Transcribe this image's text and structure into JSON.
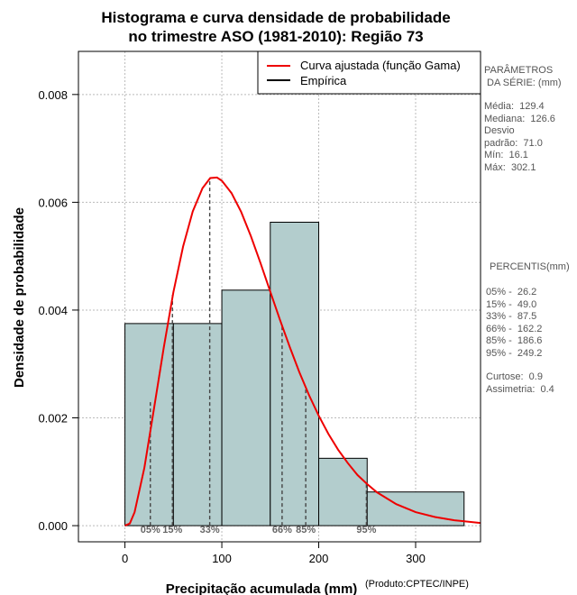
{
  "chart_data": {
    "type": "histogram",
    "title": [
      "Histograma e curva densidade de probabilidade",
      "no trimestre ASO (1981-2010): Região 73"
    ],
    "xlabel": "Precipitação acumulada (mm)",
    "ylabel": "Densidade de probabilidade",
    "credit": "(Produto:CPTEC/INPE)",
    "xlim": [
      -48,
      367
    ],
    "ylim": [
      -0.0003,
      0.0088
    ],
    "xticks": [
      0,
      100,
      200,
      300
    ],
    "xtick_labels": [
      "0",
      "100",
      "200",
      "300"
    ],
    "yticks": [
      0.0,
      0.002,
      0.004,
      0.006,
      0.008
    ],
    "ytick_labels": [
      "0.000",
      "0.002",
      "0.004",
      "0.006",
      "0.008"
    ],
    "grid": true,
    "bins": [
      {
        "x0": 0,
        "x1": 50,
        "density": 0.00375
      },
      {
        "x0": 50,
        "x1": 100,
        "density": 0.00375
      },
      {
        "x0": 100,
        "x1": 150,
        "density": 0.00437
      },
      {
        "x0": 150,
        "x1": 200,
        "density": 0.00563
      },
      {
        "x0": 200,
        "x1": 250,
        "density": 0.00125
      },
      {
        "x0": 250,
        "x1": 350,
        "density": 0.000625
      }
    ],
    "curve": {
      "name": "Curva ajustada (função Gama)",
      "color": "#ee0000",
      "distribution": "gamma",
      "shape": 3.3,
      "scale": 38.7,
      "points": [
        [
          0,
          0
        ],
        [
          5,
          4e-05
        ],
        [
          10,
          0.00025
        ],
        [
          20,
          0.00107
        ],
        [
          30,
          0.00217
        ],
        [
          40,
          0.0033
        ],
        [
          50,
          0.00433
        ],
        [
          60,
          0.00518
        ],
        [
          70,
          0.00583
        ],
        [
          80,
          0.00626
        ],
        [
          88,
          0.00645
        ],
        [
          95,
          0.00646
        ],
        [
          100,
          0.0064
        ],
        [
          110,
          0.00617
        ],
        [
          120,
          0.00582
        ],
        [
          130,
          0.00537
        ],
        [
          140,
          0.00487
        ],
        [
          150,
          0.00434
        ],
        [
          160,
          0.00382
        ],
        [
          170,
          0.00332
        ],
        [
          180,
          0.00285
        ],
        [
          190,
          0.00242
        ],
        [
          200,
          0.00204
        ],
        [
          210,
          0.0017
        ],
        [
          220,
          0.00141
        ],
        [
          230,
          0.00116
        ],
        [
          240,
          0.00094
        ],
        [
          250,
          0.00077
        ],
        [
          260,
          0.00062
        ],
        [
          280,
          0.0004
        ],
        [
          300,
          0.00025
        ],
        [
          320,
          0.00016
        ],
        [
          340,
          0.0001
        ],
        [
          367,
          5e-05
        ]
      ]
    },
    "empirical": {
      "name": "Empírica",
      "color": "#000000"
    },
    "percentile_lines": [
      {
        "label": "05%",
        "x": 26.2,
        "y": 0.00233
      },
      {
        "label": "15%",
        "x": 49.0,
        "y": 0.0043
      },
      {
        "label": "33%",
        "x": 87.5,
        "y": 0.00645
      },
      {
        "label": "66%",
        "x": 162.2,
        "y": 0.00371
      },
      {
        "label": "85%",
        "x": 186.6,
        "y": 0.00256
      },
      {
        "label": "95%",
        "x": 249.2,
        "y": 0.00078
      }
    ],
    "bar_color": "#b3cdcd",
    "legend_position": "top-right"
  },
  "side_panel": {
    "params_title": [
      "PARÂMETROS",
      " DA SÉRIE: (mm)"
    ],
    "params": [
      "Média:  129.4",
      "Mediana:  126.6",
      "Desvio",
      "padrão:  71.0",
      "Mín:  16.1",
      "Máx:  302.1"
    ],
    "percentis_title": "PERCENTIS(mm)",
    "percentis": [
      "05% -  26.2",
      "15% -  49.0",
      "33% -  87.5",
      "66% -  162.2",
      "85% -  186.6",
      "95% -  249.2"
    ],
    "stats": [
      "Curtose:  0.9",
      "Assimetria:  0.4"
    ]
  }
}
